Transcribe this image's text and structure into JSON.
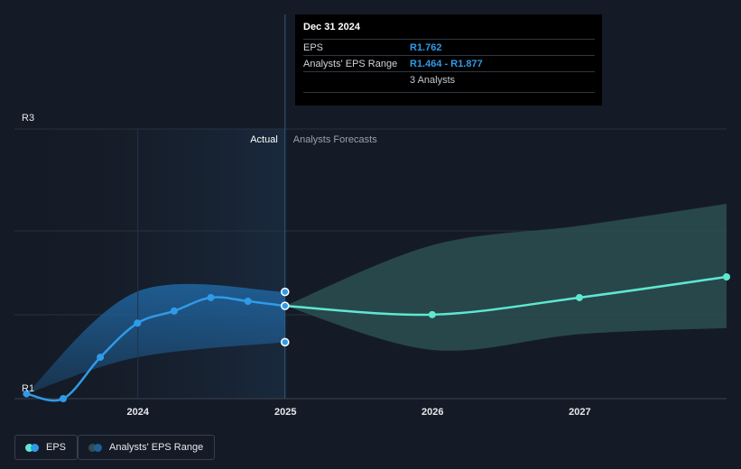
{
  "tooltip": {
    "date": "Dec 31 2024",
    "eps_label": "EPS",
    "eps_value": "R1.762",
    "range_label": "Analysts' EPS Range",
    "range_value": "R1.464 - R1.877",
    "analysts": "3 Analysts"
  },
  "legend": {
    "eps": "EPS",
    "range": "Analysts' EPS Range"
  },
  "colors": {
    "background": "#151b26",
    "eps_actual": "#2f9be8",
    "eps_forecast": "#5ee8d0",
    "range_actual": "#1f5f96",
    "range_forecast": "#2c4f52"
  },
  "chart_data": {
    "type": "line",
    "title": "",
    "xlabel": "",
    "ylabel": "",
    "y_tick_labels": [
      "R3",
      "R1"
    ],
    "y_ticks": [
      3,
      1
    ],
    "ylim": [
      1,
      3
    ],
    "x_tick_labels": [
      "2024",
      "2025",
      "2026",
      "2027"
    ],
    "x_ticks": [
      "2024-01-01",
      "2025-01-01",
      "2026-01-01",
      "2027-01-01"
    ],
    "xlim": [
      "2023-03-01",
      "2027-12-31"
    ],
    "divider_date": "2024-12-31",
    "region_labels": {
      "actual": "Actual",
      "forecast": "Analysts Forecasts"
    },
    "grid": true,
    "legend_position": "bottom-left",
    "series": [
      {
        "name": "EPS",
        "kind": "actual",
        "points": [
          [
            "2023-03-31",
            1.04
          ],
          [
            "2023-06-30",
            1.0
          ],
          [
            "2023-09-30",
            1.34
          ],
          [
            "2023-12-31",
            1.62
          ],
          [
            "2024-03-31",
            1.72
          ],
          [
            "2024-06-30",
            1.83
          ],
          [
            "2024-09-30",
            1.8
          ],
          [
            "2024-12-31",
            1.762
          ]
        ]
      },
      {
        "name": "EPS",
        "kind": "forecast",
        "points": [
          [
            "2024-12-31",
            1.762
          ],
          [
            "2025-12-31",
            1.69
          ],
          [
            "2026-12-31",
            1.83
          ],
          [
            "2027-12-31",
            2.0
          ]
        ]
      },
      {
        "name": "Analysts' EPS Range",
        "kind": "actual",
        "upper": [
          [
            "2023-03-31",
            1.04
          ],
          [
            "2023-12-31",
            1.88
          ],
          [
            "2024-12-31",
            1.877
          ]
        ],
        "lower": [
          [
            "2023-03-31",
            1.04
          ],
          [
            "2023-12-31",
            1.34
          ],
          [
            "2024-12-31",
            1.464
          ]
        ]
      },
      {
        "name": "Analysts' EPS Range",
        "kind": "forecast",
        "upper": [
          [
            "2024-12-31",
            1.762
          ],
          [
            "2025-12-31",
            2.26
          ],
          [
            "2026-12-31",
            2.42
          ],
          [
            "2027-12-31",
            2.6
          ]
        ],
        "lower": [
          [
            "2024-12-31",
            1.762
          ],
          [
            "2025-12-31",
            1.4
          ],
          [
            "2026-12-31",
            1.53
          ],
          [
            "2027-12-31",
            1.58
          ]
        ]
      }
    ]
  }
}
